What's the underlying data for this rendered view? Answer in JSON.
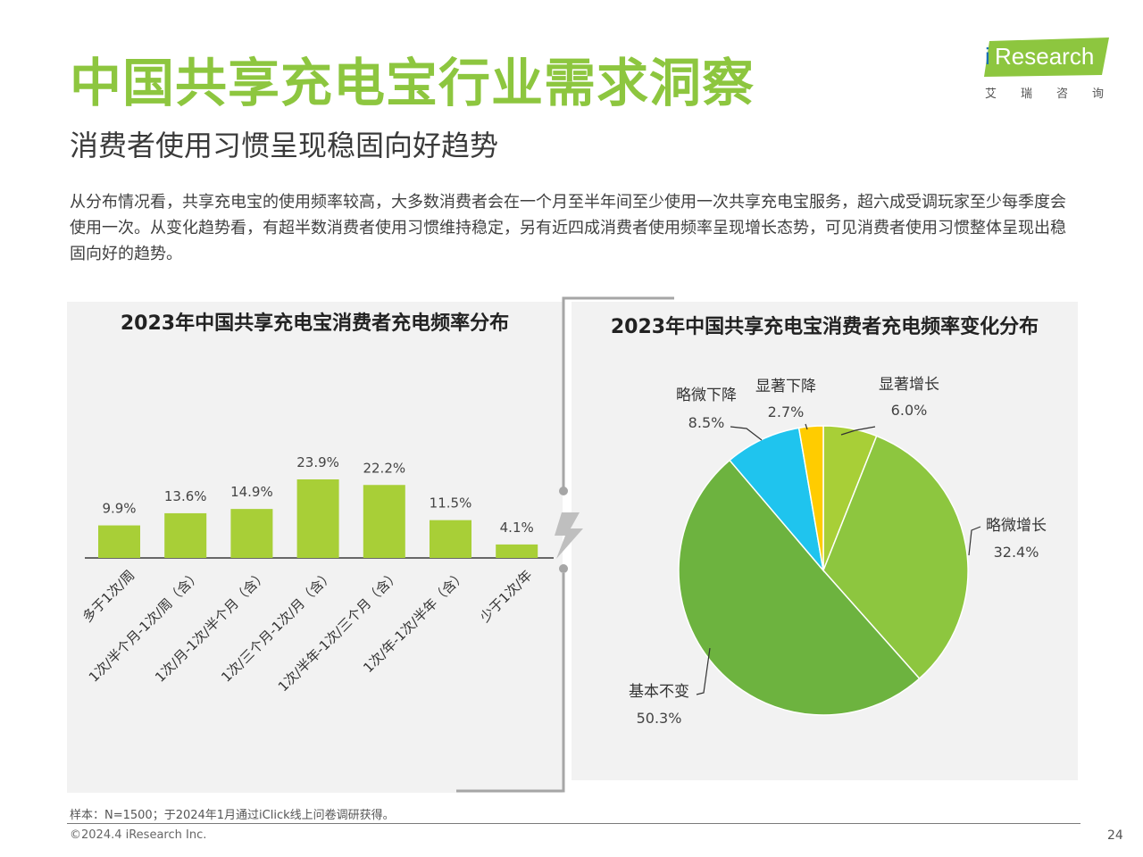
{
  "header": {
    "title": "中国共享充电宝行业需求洞察",
    "subtitle": "消费者使用习惯呈现稳固向好趋势",
    "summary": "从分布情况看，共享充电宝的使用频率较高，大多数消费者会在一个月至半年间至少使用一次共享充电宝服务，超六成受调玩家至少每季度会使用一次。从变化趋势看，有超半数消费者使用习惯维持稳定，另有近四成消费者使用频率呈现增长态势，可见消费者使用习惯整体呈现出稳固向好的趋势。"
  },
  "logo": {
    "i": "i",
    "text": "Research",
    "cn": "艾瑞咨询",
    "color": "#8dc63f"
  },
  "chart_data": [
    {
      "type": "bar",
      "title": "2023年中国共享充电宝消费者充电频率分布",
      "categories": [
        "多于1次/周",
        "1次/半个月-1次/周（含）",
        "1次/月-1次/半个月（含）",
        "1次/三个月-1次/月（含）",
        "1次/半年-1次/三个月（含）",
        "1次/年-1次/半年（含）",
        "少于1次/年"
      ],
      "values": [
        9.9,
        13.6,
        14.9,
        23.9,
        22.2,
        11.5,
        4.1
      ],
      "labels": [
        "9.9%",
        "13.6%",
        "14.9%",
        "23.9%",
        "22.2%",
        "11.5%",
        "4.1%"
      ],
      "unit": "%",
      "color": "#a8cf37",
      "xlabel": "",
      "ylabel": ""
    },
    {
      "type": "pie",
      "title": "2023年中国共享充电宝消费者充电频率变化分布",
      "slices": [
        {
          "name": "显著增长",
          "value": 6.0,
          "label": "6.0%",
          "color": "#a8cf37"
        },
        {
          "name": "略微增长",
          "value": 32.4,
          "label": "32.4%",
          "color": "#8dc63f"
        },
        {
          "name": "基本不变",
          "value": 50.3,
          "label": "50.3%",
          "color": "#6db33f"
        },
        {
          "name": "略微下降",
          "value": 8.5,
          "label": "8.5%",
          "color": "#1fc4ee"
        },
        {
          "name": "显著下降",
          "value": 2.7,
          "label": "2.7%",
          "color": "#ffcc00"
        }
      ]
    }
  ],
  "footer": {
    "note": "样本：N=1500；于2024年1月通过iClick线上问卷调研获得。",
    "copyright": "©2024.4 iResearch Inc.",
    "page": "24"
  }
}
